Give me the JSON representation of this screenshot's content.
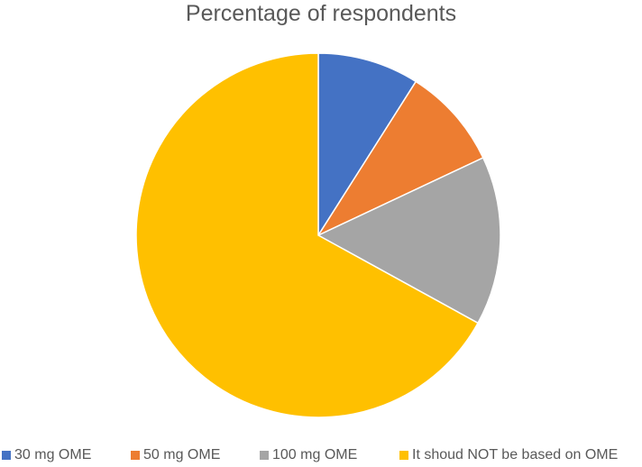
{
  "chart_data": {
    "type": "pie",
    "title": "Percentage of respondents",
    "categories": [
      "30 mg OME",
      "50 mg OME",
      "100 mg OME",
      "It shoud NOT be based on OME"
    ],
    "values": [
      9,
      9,
      15,
      67
    ],
    "units": "percent",
    "start_angle_deg": 0,
    "direction": "clockwise",
    "legend_position": "bottom",
    "colors": [
      "#4472c4",
      "#ed7d31",
      "#a5a5a5",
      "#ffc000"
    ]
  }
}
